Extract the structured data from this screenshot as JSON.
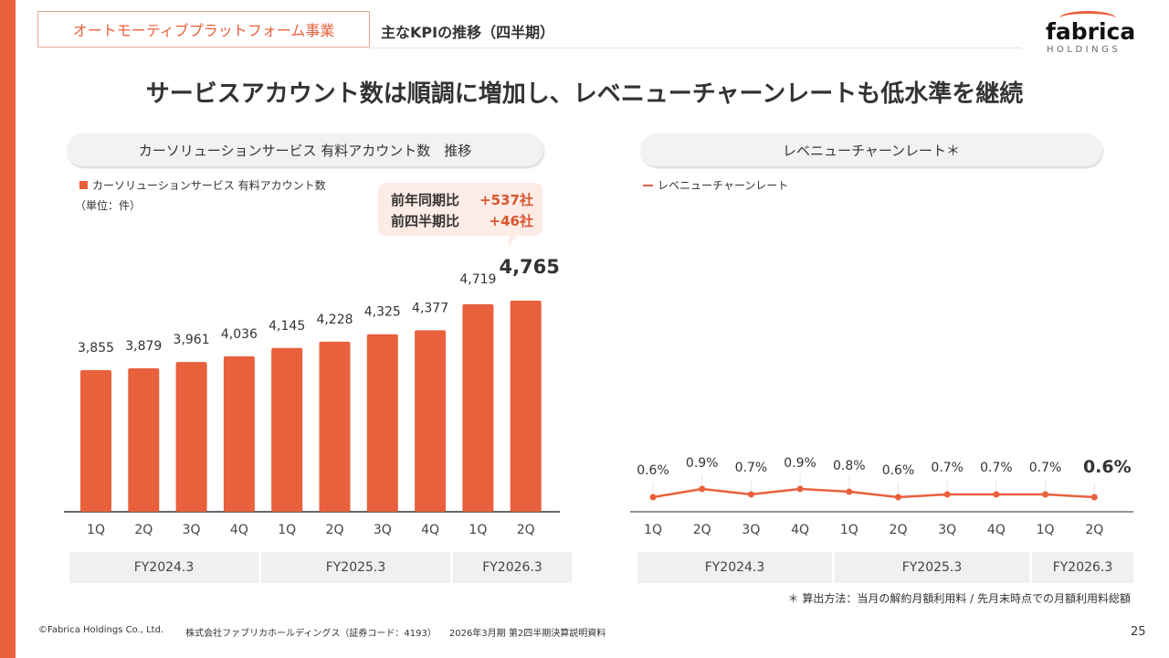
{
  "header": {
    "section_tag": "オートモーティブプラットフォーム事業",
    "subtitle": "主なKPIの推移（四半期）",
    "logo_word": "fabrica",
    "logo_sub": "HOLDINGS"
  },
  "headline": "サービスアカウント数は順調に増加し、レベニューチャーンレートも低水準を継続",
  "left_panel": {
    "pill_title": "カーソリューションサービス 有料アカウント数　推移",
    "legend": "カーソリューションサービス 有料アカウント数",
    "unit": "（単位：件）",
    "callout": [
      {
        "label": "前年同期比",
        "value": "+537社"
      },
      {
        "label": "前四半期比",
        "value": "+46社"
      }
    ],
    "fiscal_years": [
      "FY2024.3",
      "FY2025.3",
      "FY2026.3"
    ]
  },
  "right_panel": {
    "pill_title": "レベニューチャーンレート＊",
    "legend": "レベニューチャーンレート",
    "fiscal_years": [
      "FY2024.3",
      "FY2025.3",
      "FY2026.3"
    ],
    "footnote": "＊ 算出方法：当月の解約月額利用料 / 先月末時点での月額利用料総額"
  },
  "chart_data": [
    {
      "type": "bar",
      "title": "カーソリューションサービス 有料アカウント数　推移",
      "categories": [
        "1Q",
        "2Q",
        "3Q",
        "4Q",
        "1Q",
        "2Q",
        "3Q",
        "4Q",
        "1Q",
        "2Q"
      ],
      "groups": [
        {
          "label": "FY2024.3",
          "count": 4
        },
        {
          "label": "FY2025.3",
          "count": 4
        },
        {
          "label": "FY2026.3",
          "count": 2
        }
      ],
      "values": [
        3855,
        3879,
        3961,
        4036,
        4145,
        4228,
        4325,
        4377,
        4719,
        4765
      ],
      "labels": [
        "3,855",
        "3,879",
        "3,961",
        "4,036",
        "4,145",
        "4,228",
        "4,325",
        "4,377",
        "4,719",
        "4,765"
      ],
      "highlight_last": true,
      "color": "#e8603c",
      "xlabel": "",
      "ylabel": "件",
      "ylim": [
        0,
        5000
      ],
      "grid": false,
      "legend_position": "top-left"
    },
    {
      "type": "line",
      "title": "レベニューチャーンレート＊",
      "categories": [
        "1Q",
        "2Q",
        "3Q",
        "4Q",
        "1Q",
        "2Q",
        "3Q",
        "4Q",
        "1Q",
        "2Q"
      ],
      "groups": [
        {
          "label": "FY2024.3",
          "count": 4
        },
        {
          "label": "FY2025.3",
          "count": 4
        },
        {
          "label": "FY2026.3",
          "count": 2
        }
      ],
      "values": [
        0.6,
        0.9,
        0.7,
        0.9,
        0.8,
        0.6,
        0.7,
        0.7,
        0.7,
        0.6
      ],
      "labels": [
        "0.6%",
        "0.9%",
        "0.7%",
        "0.9%",
        "0.8%",
        "0.6%",
        "0.7%",
        "0.7%",
        "0.7%",
        "0.6%"
      ],
      "unit": "%",
      "highlight_last": true,
      "color": "#e8603c",
      "ylim": [
        0,
        10
      ],
      "grid": false,
      "legend_position": "top-left"
    }
  ],
  "footer": {
    "copyright": "©Fabrica Holdings Co., Ltd.",
    "company": "株式会社ファブリカホールディングス（証券コード：4193）",
    "document": "2026年3月期 第2四半期決算説明資料",
    "page_number": "25"
  }
}
